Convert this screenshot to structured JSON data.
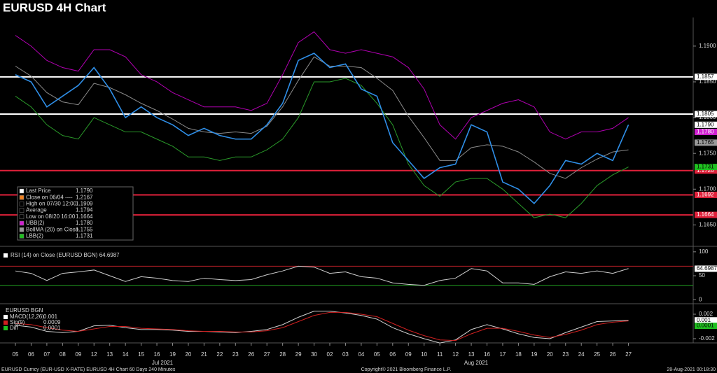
{
  "title": "EURUSD 4H Chart",
  "footer": {
    "left": "EURUSD Curncy (EUR-USD X-RATE) EURUSD 4H Chart 60 Days 240 Minutes",
    "center": "Copyright© 2021 Bloomberg Finance L.P.",
    "right": "28-Aug-2021 00:18:30"
  },
  "months": [
    "Jul 2021",
    "Aug 2021"
  ],
  "chart_data": [
    {
      "type": "line",
      "categories": [
        "05",
        "06",
        "07",
        "08",
        "09",
        "12",
        "13",
        "14",
        "15",
        "16",
        "19",
        "20",
        "21",
        "22",
        "23",
        "26",
        "27",
        "28",
        "29",
        "30",
        "02",
        "03",
        "04",
        "05",
        "06",
        "09",
        "10",
        "11",
        "12",
        "13",
        "16",
        "17",
        "18",
        "19",
        "20",
        "23",
        "24",
        "25",
        "26",
        "27"
      ],
      "ylim": [
        1.1622,
        1.194
      ],
      "yticks": [
        {
          "value": 1.19,
          "label": "1.1900"
        },
        {
          "value": 1.185,
          "label": "1.1850"
        },
        {
          "value": 1.18,
          "label": "1.1800"
        },
        {
          "value": 1.175,
          "label": "1.1750"
        },
        {
          "value": 1.17,
          "label": "1.1700"
        },
        {
          "value": 1.165,
          "label": "1.1650"
        }
      ],
      "series": [
        {
          "color": "#b000b0",
          "values": [
            1.1915,
            1.19,
            1.188,
            1.187,
            1.1865,
            1.1895,
            1.1895,
            1.1885,
            1.186,
            1.185,
            1.1835,
            1.1825,
            1.1815,
            1.1815,
            1.1815,
            1.181,
            1.182,
            1.186,
            1.1905,
            1.192,
            1.1895,
            1.189,
            1.1895,
            1.189,
            1.1885,
            1.187,
            1.184,
            1.179,
            1.177,
            1.18,
            1.181,
            1.182,
            1.1825,
            1.1815,
            1.178,
            1.177,
            1.178,
            1.178,
            1.1785,
            1.18
          ]
        },
        {
          "color": "#8a8a8a",
          "values": [
            1.1872,
            1.1858,
            1.1835,
            1.1822,
            1.1818,
            1.1848,
            1.1842,
            1.1832,
            1.182,
            1.181,
            1.1798,
            1.1785,
            1.178,
            1.1778,
            1.178,
            1.1778,
            1.1788,
            1.1815,
            1.1852,
            1.1885,
            1.1872,
            1.1872,
            1.187,
            1.1855,
            1.1838,
            1.1802,
            1.1772,
            1.174,
            1.174,
            1.1758,
            1.1762,
            1.176,
            1.1752,
            1.1738,
            1.1722,
            1.1715,
            1.173,
            1.1742,
            1.1752,
            1.1755
          ]
        },
        {
          "color": "#2a9a2a",
          "values": [
            1.183,
            1.1815,
            1.179,
            1.1775,
            1.177,
            1.18,
            1.179,
            1.178,
            1.178,
            1.177,
            1.176,
            1.1745,
            1.1745,
            1.174,
            1.1745,
            1.1745,
            1.1755,
            1.177,
            1.18,
            1.185,
            1.185,
            1.1855,
            1.1845,
            1.182,
            1.179,
            1.1735,
            1.1705,
            1.169,
            1.171,
            1.1715,
            1.1715,
            1.17,
            1.168,
            1.166,
            1.1665,
            1.166,
            1.168,
            1.1705,
            1.172,
            1.1731
          ]
        },
        {
          "color": "#2f8fe8",
          "values": [
            1.186,
            1.185,
            1.1815,
            1.183,
            1.1845,
            1.187,
            1.184,
            1.18,
            1.1815,
            1.18,
            1.179,
            1.1775,
            1.1785,
            1.1775,
            1.177,
            1.177,
            1.179,
            1.182,
            1.188,
            1.189,
            1.187,
            1.1875,
            1.184,
            1.183,
            1.1765,
            1.174,
            1.1715,
            1.173,
            1.1735,
            1.179,
            1.178,
            1.171,
            1.17,
            1.168,
            1.1705,
            1.174,
            1.1735,
            1.175,
            1.174,
            1.179
          ]
        }
      ],
      "levels": [
        {
          "value": 1.1857,
          "label": "1.1857",
          "color": "#ffffff"
        },
        {
          "value": 1.1805,
          "label": "1.1805",
          "color": "#ffffff"
        },
        {
          "value": 1.1726,
          "label": "1.1726",
          "color": "#e0203a"
        },
        {
          "value": 1.1692,
          "label": "1.1692",
          "color": "#e0203a"
        },
        {
          "value": 1.1664,
          "label": "1.1664",
          "color": "#e0203a"
        }
      ],
      "markers": [
        {
          "value": 1.179,
          "label": "1.1790",
          "color": "#ffffff"
        },
        {
          "value": 1.178,
          "label": "1.1780",
          "color": "#d020d0"
        },
        {
          "value": 1.1765,
          "label": "1.1765",
          "color": "#9a9a9a"
        },
        {
          "value": 1.1731,
          "label": "1.1731",
          "color": "#20c020"
        }
      ],
      "legend": [
        {
          "label": "Last Price",
          "value": "1.1790",
          "color": "#ffffff"
        },
        {
          "label": "Close on 06/04 ----",
          "value": "1.2167",
          "color": "#f08020"
        },
        {
          "label": "High on 07/30 12:00",
          "value": "1.1909",
          "color": "#000000"
        },
        {
          "label": "Average",
          "value": "1.1794",
          "color": "#000000"
        },
        {
          "label": "Low on 08/20 16:00",
          "value": "1.1664",
          "color": "#000000"
        },
        {
          "label": "UBB(2)",
          "value": "1.1780",
          "color": "#d020d0"
        },
        {
          "label": "BollMA (20)  on Close",
          "value": "1.1755",
          "color": "#9a9a9a"
        },
        {
          "label": "LBB(2)",
          "value": "1.1731",
          "color": "#20c020"
        }
      ]
    },
    {
      "type": "line",
      "title": "RSI (14)  on Close (EURUSD BGN) 64.6987",
      "ylim": [
        -7,
        110
      ],
      "yticks": [
        100,
        50,
        0
      ],
      "series": [
        {
          "color": "#cfcfcf",
          "values": [
            60,
            55,
            40,
            55,
            58,
            62,
            50,
            38,
            48,
            45,
            40,
            38,
            45,
            42,
            40,
            42,
            52,
            60,
            70,
            68,
            55,
            58,
            48,
            45,
            35,
            32,
            30,
            40,
            45,
            65,
            60,
            35,
            35,
            32,
            48,
            58,
            55,
            60,
            55,
            65
          ]
        }
      ],
      "levels": [
        {
          "value": 70,
          "color": "#c0202a"
        },
        {
          "value": 30,
          "color": "#20a020"
        }
      ],
      "markers": [
        {
          "value": 64.6987,
          "label": "64.6987",
          "color": "#ffffff"
        }
      ]
    },
    {
      "type": "line",
      "title": "EURUSD BGN",
      "ylim": [
        -0.00246,
        0.00337
      ],
      "yticks": [
        0.002,
        -0.002
      ],
      "series": [
        {
          "color": "#d0d0d0",
          "values": [
            0.0002,
            -0.0001,
            -0.0008,
            -0.001,
            -0.0008,
            0.0001,
            0.0002,
            -0.0002,
            -0.0005,
            -0.0005,
            -0.0006,
            -0.0008,
            -0.0008,
            -0.0009,
            -0.001,
            -0.0008,
            -0.0005,
            0.0003,
            0.0015,
            0.0025,
            0.0025,
            0.0022,
            0.0018,
            0.0012,
            -0.0002,
            -0.0012,
            -0.002,
            -0.0027,
            -0.0022,
            -0.0005,
            0.0003,
            -0.0004,
            -0.0012,
            -0.0018,
            -0.002,
            -0.001,
            -0.0001,
            0.0008,
            0.0009,
            0.001
          ]
        },
        {
          "color": "#d02020",
          "values": [
            0.0005,
            0.0003,
            -0.0002,
            -0.0006,
            -0.0008,
            -0.0004,
            0,
            0,
            -0.0003,
            -0.0004,
            -0.0005,
            -0.0007,
            -0.0008,
            -0.0008,
            -0.0009,
            -0.0009,
            -0.0007,
            -0.0002,
            0.0008,
            0.0018,
            0.0023,
            0.0023,
            0.002,
            0.0016,
            0.0005,
            -0.0006,
            -0.0015,
            -0.0022,
            -0.0023,
            -0.0012,
            -0.0003,
            -0.0003,
            -0.0008,
            -0.0014,
            -0.0018,
            -0.0013,
            -0.0006,
            0.0003,
            0.0007,
            0.0009
          ]
        }
      ],
      "legend": [
        {
          "label": "MACD(12,26)",
          "value": "0.001",
          "color": "#ffffff"
        },
        {
          "label": "Sig(9)",
          "value": "0.0009",
          "color": "#d02020"
        },
        {
          "label": "Diff",
          "value": "0.0001",
          "color": "#20c020"
        }
      ],
      "markers": [
        {
          "value": 0.001,
          "label": "0.001",
          "color": "#ffffff"
        },
        {
          "value": 0.0001,
          "label": "0.0001",
          "color": "#20c020"
        }
      ]
    }
  ]
}
